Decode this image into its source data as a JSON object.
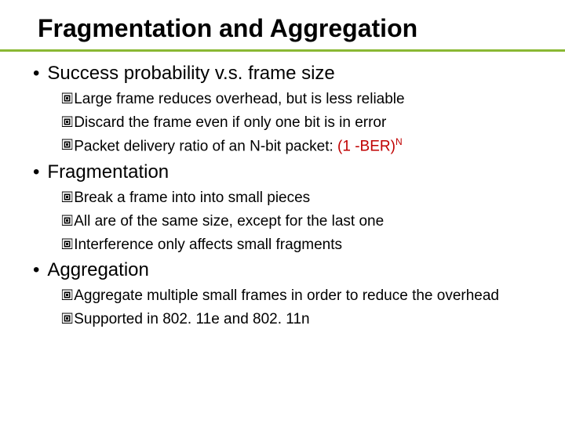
{
  "colors": {
    "accent_underline": "#8ab833",
    "highlight": "#c00000",
    "text": "#000000",
    "background": "#ffffff"
  },
  "typography": {
    "title_fontsize": 32,
    "section_fontsize": 24,
    "sub_fontsize": 19,
    "font_family": "Arial"
  },
  "title": "Fragmentation and Aggregation",
  "sections": [
    {
      "header": "Success probability v.s. frame size",
      "items": [
        {
          "text": "Large frame reduces overhead, but is less reliable"
        },
        {
          "text": "Discard the frame even if only one bit is in error"
        },
        {
          "prefix": "Packet delivery ratio of an N-bit packet: ",
          "highlight_base": "(1 -BER)",
          "highlight_sup": "N"
        }
      ]
    },
    {
      "header": "Fragmentation",
      "items": [
        {
          "text": "Break a frame into into small pieces"
        },
        {
          "text": "All are of the same size, except for the last one"
        },
        {
          "text": "Interference only affects small fragments"
        }
      ]
    },
    {
      "header": "Aggregation",
      "items": [
        {
          "text": "Aggregate multiple small frames in order to reduce the overhead",
          "wrap": true
        },
        {
          "text": "Supported in 802. 11e and 802. 11n"
        }
      ]
    }
  ]
}
